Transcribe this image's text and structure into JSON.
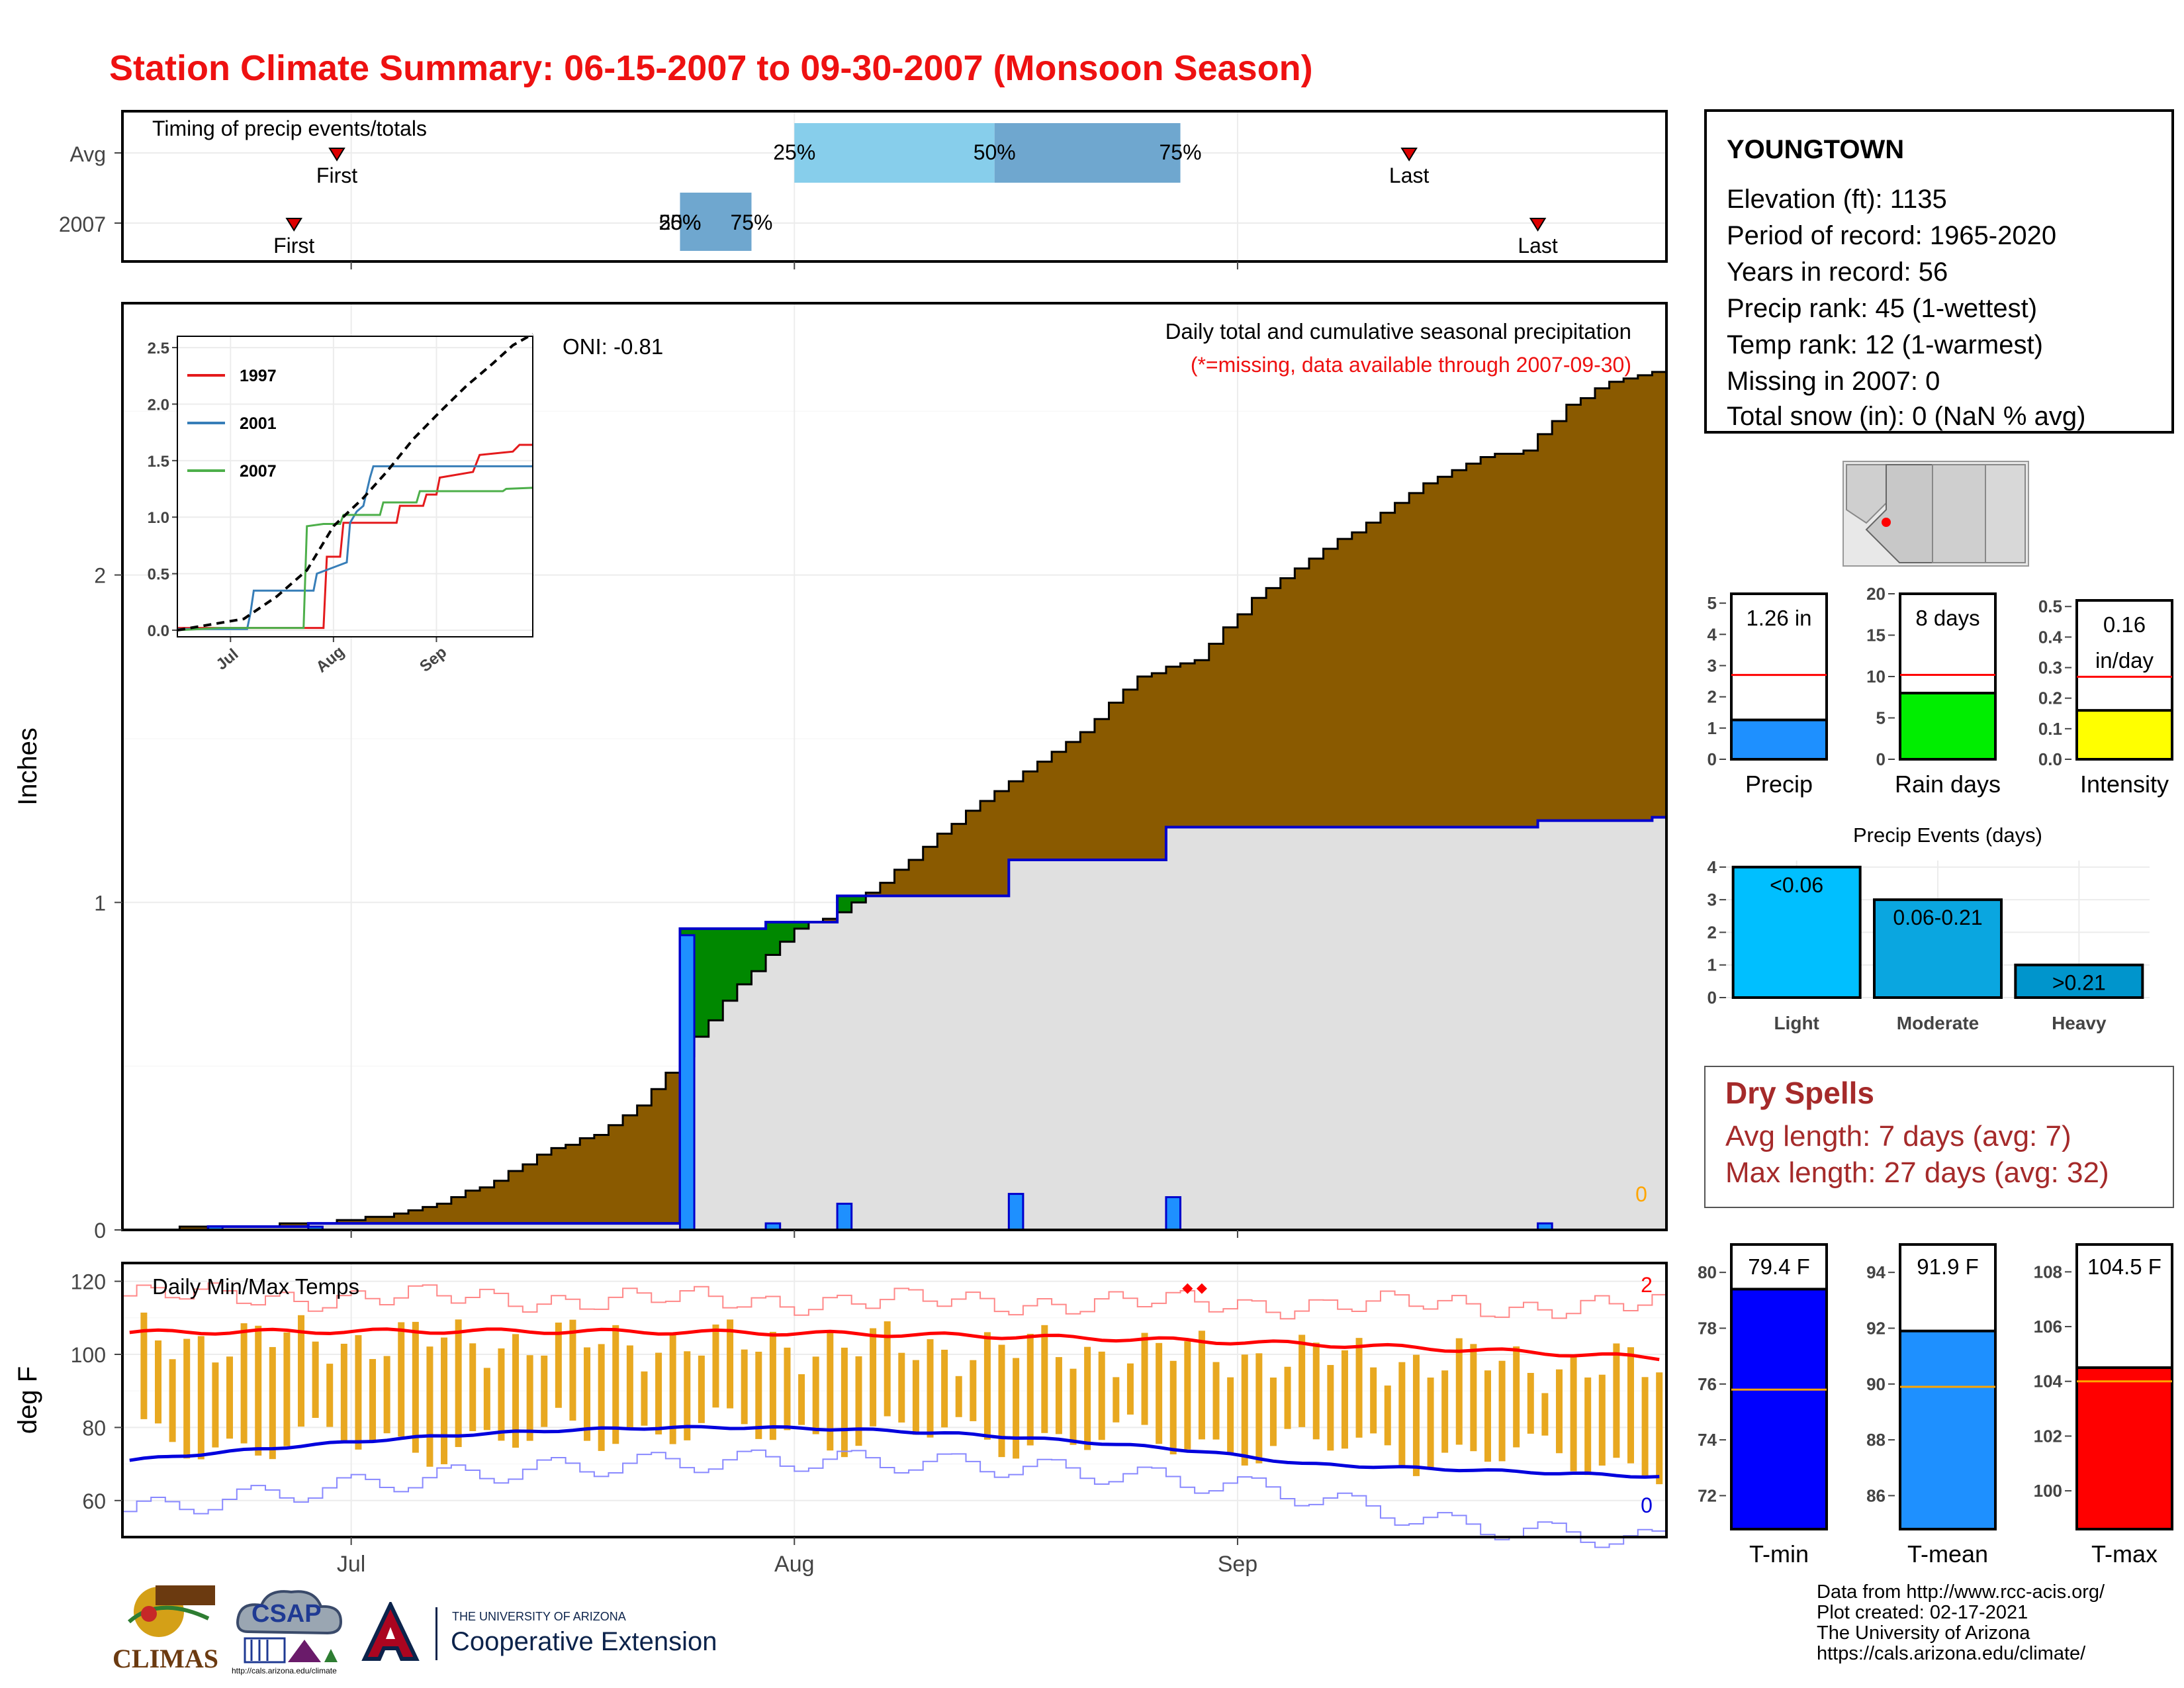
{
  "title": "Station Climate Summary: 06-15-2007 to 09-30-2007 (Monsoon Season)",
  "colors": {
    "title": "#ee1111",
    "cumulative_fill": "#8a5a00",
    "surplus_fill": "#008800",
    "current_fill": "#e0e0e0",
    "daily_bar": "#1e90ff",
    "temp_bar": "#e8a820",
    "max_line": "#ff0000",
    "min_line": "#0000dd"
  },
  "chart_data": [
    {
      "id": "timing",
      "type": "bar",
      "title": "Timing of precip events/totals",
      "rows": [
        {
          "label": "Avg",
          "first": "First",
          "last": "Last",
          "first_date": "2007-06-30",
          "last_date": "2007-09-13",
          "q25_label": "25%",
          "q50_label": "50%",
          "q75_label": "75%",
          "q25": "2007-08-01",
          "q50": "2007-08-15",
          "q75": "2007-08-28"
        },
        {
          "label": "2007",
          "first": "First",
          "last": "Last",
          "first_date": "2007-06-27",
          "last_date": "2007-09-22",
          "q25_label": "25%",
          "q50_label": "50%",
          "q75_label": "75%",
          "q25": "2007-07-24",
          "q50": "2007-07-24",
          "q75": "2007-07-29"
        }
      ]
    },
    {
      "id": "precip",
      "type": "area",
      "title": "Daily total and cumulative seasonal precipitation",
      "subtitle": "(*=missing, data available through 2007-09-30)",
      "oni": "ONI: -0.81",
      "ylabel": "Inches",
      "ylim": [
        0,
        2.83
      ],
      "yticks": [
        0,
        1,
        2
      ],
      "xlim": [
        "2007-06-15",
        "2007-09-30"
      ],
      "xticks": [
        {
          "date": "2007-07-01",
          "label": "Jul"
        },
        {
          "date": "2007-08-01",
          "label": "Aug"
        },
        {
          "date": "2007-09-01",
          "label": "Sep"
        }
      ],
      "missing_count": "0",
      "avg_cumulative": [
        [
          "2007-06-15",
          0
        ],
        [
          "2007-06-22",
          0.01
        ],
        [
          "2007-06-29",
          0.02
        ],
        [
          "2007-07-03",
          0.04
        ],
        [
          "2007-07-07",
          0.08
        ],
        [
          "2007-07-11",
          0.15
        ],
        [
          "2007-07-15",
          0.25
        ],
        [
          "2007-07-18",
          0.29
        ],
        [
          "2007-07-21",
          0.38
        ],
        [
          "2007-07-24",
          0.53
        ],
        [
          "2007-07-28",
          0.75
        ],
        [
          "2007-08-01",
          0.92
        ],
        [
          "2007-08-04",
          0.97
        ],
        [
          "2007-08-07",
          1.06
        ],
        [
          "2007-08-10",
          1.17
        ],
        [
          "2007-08-13",
          1.28
        ],
        [
          "2007-08-17",
          1.4
        ],
        [
          "2007-08-21",
          1.52
        ],
        [
          "2007-08-25",
          1.69
        ],
        [
          "2007-08-29",
          1.74
        ],
        [
          "2007-09-02",
          1.93
        ],
        [
          "2007-09-06",
          2.05
        ],
        [
          "2007-09-10",
          2.16
        ],
        [
          "2007-09-14",
          2.28
        ],
        [
          "2007-09-18",
          2.36
        ],
        [
          "2007-09-21",
          2.38
        ],
        [
          "2007-09-24",
          2.52
        ],
        [
          "2007-09-27",
          2.59
        ],
        [
          "2007-09-30",
          2.62
        ]
      ],
      "current_cumulative": [
        [
          "2007-06-15",
          0
        ],
        [
          "2007-06-20",
          0
        ],
        [
          "2007-06-21",
          0.01
        ],
        [
          "2007-06-27",
          0.01
        ],
        [
          "2007-06-28",
          0.02
        ],
        [
          "2007-07-23",
          0.02
        ],
        [
          "2007-07-24",
          0.92
        ],
        [
          "2007-07-29",
          0.92
        ],
        [
          "2007-07-30",
          0.94
        ],
        [
          "2007-08-03",
          0.94
        ],
        [
          "2007-08-04",
          1.02
        ],
        [
          "2007-08-15",
          1.02
        ],
        [
          "2007-08-16",
          1.13
        ],
        [
          "2007-08-26",
          1.13
        ],
        [
          "2007-08-27",
          1.23
        ],
        [
          "2007-09-21",
          1.23
        ],
        [
          "2007-09-22",
          1.25
        ],
        [
          "2007-09-30",
          1.26
        ]
      ],
      "daily": [
        [
          "2007-06-21",
          0.01
        ],
        [
          "2007-06-28",
          0.01
        ],
        [
          "2007-07-24",
          0.9
        ],
        [
          "2007-07-30",
          0.02
        ],
        [
          "2007-08-04",
          0.08
        ],
        [
          "2007-08-16",
          0.11
        ],
        [
          "2007-08-27",
          0.1
        ],
        [
          "2007-09-22",
          0.02
        ]
      ],
      "inset": {
        "type": "line",
        "ylim": [
          0,
          2.6
        ],
        "yticks": [
          "0.0",
          "0.5",
          "1.0",
          "1.5",
          "2.0",
          "2.5"
        ],
        "xticks": [
          "Jul",
          "Aug",
          "Sep"
        ],
        "series": [
          {
            "name": "1997",
            "color": "#e41a1c",
            "values": [
              [
                "2007-06-15",
                0.02
              ],
              [
                "2007-07-29",
                0.02
              ],
              [
                "2007-07-30",
                0.65
              ],
              [
                "2007-08-03",
                0.65
              ],
              [
                "2007-08-04",
                0.95
              ],
              [
                "2007-08-20",
                0.95
              ],
              [
                "2007-08-21",
                1.1
              ],
              [
                "2007-08-28",
                1.1
              ],
              [
                "2007-08-29",
                1.2
              ],
              [
                "2007-09-01",
                1.2
              ],
              [
                "2007-09-02",
                1.35
              ],
              [
                "2007-09-12",
                1.4
              ],
              [
                "2007-09-14",
                1.55
              ],
              [
                "2007-09-24",
                1.58
              ],
              [
                "2007-09-26",
                1.64
              ],
              [
                "2007-09-30",
                1.64
              ]
            ]
          },
          {
            "name": "2001",
            "color": "#377eb8",
            "values": [
              [
                "2007-06-15",
                0.01
              ],
              [
                "2007-07-06",
                0.01
              ],
              [
                "2007-07-07",
                0.15
              ],
              [
                "2007-07-08",
                0.35
              ],
              [
                "2007-07-26",
                0.35
              ],
              [
                "2007-07-27",
                0.5
              ],
              [
                "2007-08-05",
                0.6
              ],
              [
                "2007-08-06",
                0.95
              ],
              [
                "2007-08-08",
                1.05
              ],
              [
                "2007-08-10",
                1.1
              ],
              [
                "2007-08-12",
                1.35
              ],
              [
                "2007-08-13",
                1.45
              ],
              [
                "2007-09-30",
                1.45
              ]
            ]
          },
          {
            "name": "2007",
            "color": "#4daf4a",
            "values": [
              [
                "2007-06-15",
                0
              ],
              [
                "2007-06-28",
                0.02
              ],
              [
                "2007-07-23",
                0.02
              ],
              [
                "2007-07-24",
                0.92
              ],
              [
                "2007-07-29",
                0.94
              ],
              [
                "2007-08-03",
                0.94
              ],
              [
                "2007-08-04",
                1.02
              ],
              [
                "2007-08-15",
                1.02
              ],
              [
                "2007-08-16",
                1.13
              ],
              [
                "2007-08-26",
                1.13
              ],
              [
                "2007-08-27",
                1.23
              ],
              [
                "2007-09-21",
                1.23
              ],
              [
                "2007-09-22",
                1.25
              ],
              [
                "2007-09-30",
                1.26
              ]
            ]
          },
          {
            "name": "",
            "color": "#000000",
            "dashed": true,
            "values": [
              [
                "2007-06-15",
                0
              ],
              [
                "2007-07-05",
                0.1
              ],
              [
                "2007-07-15",
                0.3
              ],
              [
                "2007-07-24",
                0.53
              ],
              [
                "2007-08-01",
                0.92
              ],
              [
                "2007-08-10",
                1.17
              ],
              [
                "2007-08-17",
                1.4
              ],
              [
                "2007-08-25",
                1.69
              ],
              [
                "2007-09-02",
                1.93
              ],
              [
                "2007-09-10",
                2.16
              ],
              [
                "2007-09-18",
                2.36
              ],
              [
                "2007-09-24",
                2.52
              ],
              [
                "2007-09-30",
                2.62
              ]
            ]
          }
        ]
      }
    },
    {
      "id": "temps",
      "type": "bar",
      "title": "Daily Min/Max Temps",
      "ylabel": "deg F",
      "ylim": [
        50,
        125
      ],
      "yticks": [
        60,
        80,
        100,
        120
      ],
      "record_high_count": "2",
      "record_low_count": "0",
      "xticks": [
        {
          "date": "2007-07-01",
          "label": "Jul"
        },
        {
          "date": "2007-08-01",
          "label": "Aug"
        },
        {
          "date": "2007-09-01",
          "label": "Sep"
        }
      ]
    },
    {
      "id": "precip_total",
      "type": "bar",
      "value": 1.26,
      "label": "1.26 in",
      "avg": 2.7,
      "ylim": [
        0,
        5.3
      ],
      "yticks": [
        0,
        1,
        2,
        3,
        4,
        5
      ],
      "category": "Precip",
      "color": "#1e90ff"
    },
    {
      "id": "rain_days",
      "type": "bar",
      "value": 8,
      "label": "8 days",
      "avg": 10.2,
      "ylim": [
        0,
        20
      ],
      "yticks": [
        0,
        5,
        10,
        15,
        20
      ],
      "category": "Rain days",
      "color": "#00ee00"
    },
    {
      "id": "intensity",
      "type": "bar",
      "value": 0.16,
      "label": "0.16",
      "label2": "in/day",
      "avg": 0.27,
      "ylim": [
        0,
        0.52
      ],
      "yticks": [
        "0.0",
        "0.1",
        "0.2",
        "0.3",
        "0.4",
        "0.5"
      ],
      "category": "Intensity",
      "color": "#ffff00"
    },
    {
      "id": "events",
      "type": "bar",
      "title": "Precip Events (days)",
      "ylim": [
        0,
        4.2
      ],
      "yticks": [
        0,
        1,
        2,
        3,
        4
      ],
      "categories": [
        "Light",
        "Moderate",
        "Heavy"
      ],
      "values": [
        4,
        3,
        1
      ],
      "labels": [
        "<0.06",
        "0.06-0.21",
        ">0.21"
      ],
      "colors": [
        "#00bfff",
        "#0aa6e0",
        "#0095cc"
      ]
    },
    {
      "id": "tmin",
      "type": "bar",
      "value": 79.4,
      "label": "79.4 F",
      "avg": 75.8,
      "ylim": [
        70.8,
        81
      ],
      "yticks": [
        72,
        74,
        76,
        78,
        80
      ],
      "category": "T-min",
      "color": "#0000ff"
    },
    {
      "id": "tmean",
      "type": "bar",
      "value": 91.9,
      "label": "91.9 F",
      "avg": 89.9,
      "ylim": [
        84.8,
        95
      ],
      "yticks": [
        86,
        88,
        90,
        92,
        94
      ],
      "category": "T-mean",
      "color": "#1e90ff"
    },
    {
      "id": "tmax",
      "type": "bar",
      "value": 104.5,
      "label": "104.5 F",
      "avg": 104.0,
      "ylim": [
        98.6,
        109
      ],
      "yticks": [
        100,
        102,
        104,
        106,
        108
      ],
      "category": "T-max",
      "color": "#ff0000"
    }
  ],
  "station": {
    "name": "YOUNGTOWN",
    "lines": [
      "Elevation (ft): 1135",
      "Period of record: 1965-2020",
      "Years in record: 56",
      "Precip rank: 45 (1-wettest)",
      "Temp rank: 12 (1-warmest)",
      "Missing in 2007: 0",
      "Total snow (in): 0 (NaN % avg)"
    ]
  },
  "dry_spells": {
    "title": "Dry Spells",
    "avg": "Avg length: 7 days (avg: 7)",
    "max": "Max length: 27 days (avg: 32)"
  },
  "credits": [
    "Data from http://www.rcc-acis.org/",
    "Plot created: 02-17-2021",
    "The University of Arizona",
    "https://cals.arizona.edu/climate/"
  ],
  "logos": {
    "climas": "CLIMAS",
    "csap": "CSAP",
    "csap_url": "http://cals.arizona.edu/climate",
    "ua_small": "THE UNIVERSITY OF ARIZONA",
    "ua_big": "Cooperative Extension"
  }
}
